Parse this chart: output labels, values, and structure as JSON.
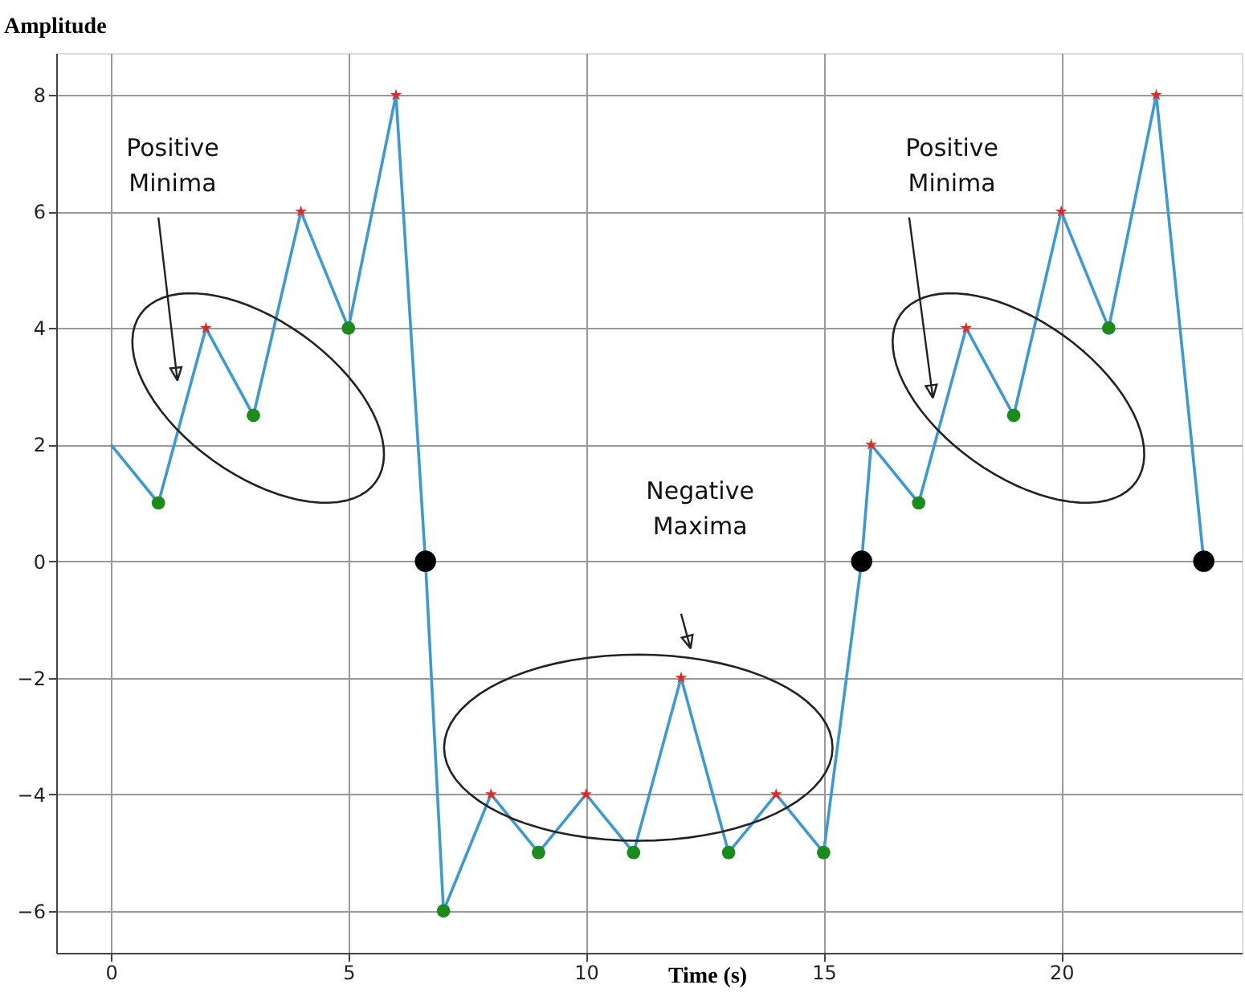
{
  "chart_data": {
    "type": "line",
    "xlabel": "Time (s)",
    "ylabel": "Amplitude",
    "xlim": [
      -1.15,
      23.8
    ],
    "ylim": [
      -6.72,
      8.72
    ],
    "xticks": [
      0,
      5,
      10,
      15,
      20
    ],
    "yticks": [
      -6,
      -4,
      -2,
      0,
      2,
      4,
      6,
      8
    ],
    "grid": true,
    "series": [
      {
        "type": "line",
        "color": "#3b9ad6",
        "marker": "none",
        "x": [
          0,
          1,
          2,
          3,
          4,
          5,
          6,
          6.62,
          7,
          8,
          9,
          10,
          11,
          12,
          13,
          14,
          15,
          15.8,
          16,
          17,
          18,
          19,
          20,
          21,
          22,
          23
        ],
        "values": [
          2,
          1,
          4,
          2.5,
          6,
          4,
          8,
          0,
          -6,
          -4,
          -5,
          -4,
          -5,
          -2,
          -5,
          -4,
          -5,
          0,
          2,
          1,
          4,
          2.5,
          6,
          4,
          8,
          0
        ]
      },
      {
        "type": "scatter",
        "color": "#e8261f",
        "marker": "star",
        "x": [
          2,
          4,
          6,
          8,
          10,
          12,
          14,
          16,
          18,
          20,
          22
        ],
        "values": [
          4,
          6,
          8,
          -4,
          -4,
          -2,
          -4,
          2,
          4,
          6,
          8
        ]
      },
      {
        "type": "scatter",
        "color": "#1a8c1a",
        "marker": "circle",
        "x": [
          1,
          3,
          5,
          7,
          9,
          11,
          13,
          15,
          17,
          19,
          21
        ],
        "values": [
          1,
          2.5,
          4,
          -6,
          -5,
          -5,
          -5,
          -5,
          1,
          2.5,
          4
        ]
      },
      {
        "type": "scatter",
        "color": "#000000",
        "marker": "circle",
        "x": [
          6.62,
          15.8,
          23
        ],
        "values": [
          0,
          0,
          0
        ]
      }
    ],
    "annotations": [
      "Positive Minima",
      "Negative Maxima",
      "Positive Minima"
    ]
  }
}
